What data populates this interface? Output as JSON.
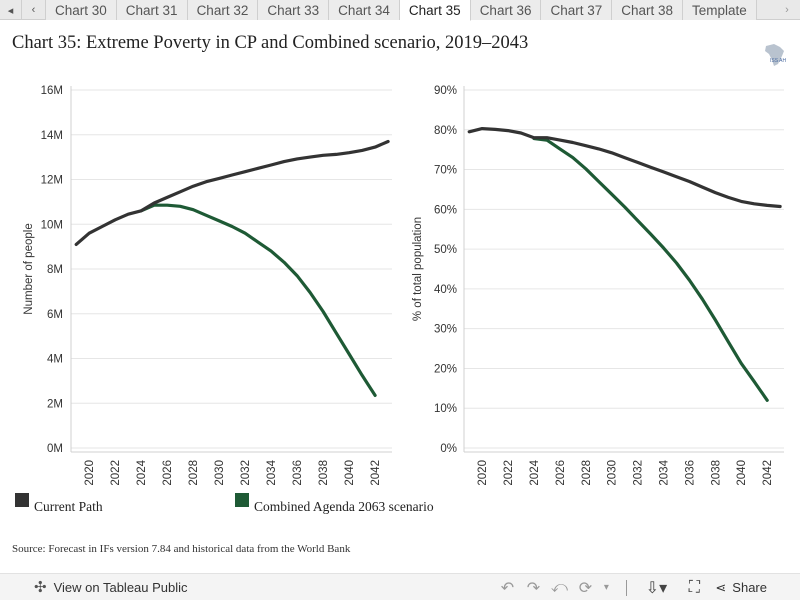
{
  "tabs": {
    "nav_left": "◂",
    "nav_prev": "‹",
    "nav_next": "›",
    "items": [
      {
        "label": "Chart 30"
      },
      {
        "label": "Chart 31"
      },
      {
        "label": "Chart 32"
      },
      {
        "label": "Chart 33"
      },
      {
        "label": "Chart 34"
      },
      {
        "label": "Chart 35"
      },
      {
        "label": "Chart 36"
      },
      {
        "label": "Chart 37"
      },
      {
        "label": "Chart 38"
      },
      {
        "label": "Template"
      }
    ],
    "active_index": 5
  },
  "title": "Chart 35: Extreme Poverty in CP and Combined scenario, 2019–2043",
  "logo_text": "ISS AH",
  "source": "Source: Forecast in IFs version 7.84 and historical data from the World Bank",
  "colors": {
    "current_path": "#333333",
    "combined": "#1e5a35",
    "grid": "#e6e6e6"
  },
  "legend": [
    {
      "name": "Current Path",
      "color": "#333333"
    },
    {
      "name": "Combined Agenda 2063 scenario",
      "color": "#1e5a35"
    }
  ],
  "footer": {
    "tableau_label": "View on Tableau Public",
    "share_label": "Share"
  },
  "chart_data": [
    {
      "type": "line",
      "ylabel": "Number of people",
      "xlabel": "",
      "ylim": [
        0,
        16
      ],
      "yticks": [
        {
          "value": 0,
          "label": "0M"
        },
        {
          "value": 2,
          "label": "2M"
        },
        {
          "value": 4,
          "label": "4M"
        },
        {
          "value": 6,
          "label": "6M"
        },
        {
          "value": 8,
          "label": "8M"
        },
        {
          "value": 10,
          "label": "10M"
        },
        {
          "value": 12,
          "label": "12M"
        },
        {
          "value": 14,
          "label": "14M"
        },
        {
          "value": 16,
          "label": "16M"
        }
      ],
      "xticks": [
        "2020",
        "2022",
        "2024",
        "2026",
        "2028",
        "2030",
        "2032",
        "2034",
        "2036",
        "2038",
        "2040",
        "2042"
      ],
      "x": [
        2019,
        2020,
        2021,
        2022,
        2023,
        2024,
        2025,
        2026,
        2027,
        2028,
        2029,
        2030,
        2031,
        2032,
        2033,
        2034,
        2035,
        2036,
        2037,
        2038,
        2039,
        2040,
        2041,
        2042,
        2043
      ],
      "grid": true,
      "series": [
        {
          "name": "Current Path",
          "color": "#333333",
          "values": [
            9.1,
            9.6,
            9.9,
            10.2,
            10.45,
            10.6,
            10.95,
            11.2,
            11.45,
            11.7,
            11.9,
            12.05,
            12.2,
            12.35,
            12.5,
            12.65,
            12.8,
            12.92,
            13.0,
            13.08,
            13.12,
            13.2,
            13.3,
            13.45,
            13.7
          ]
        },
        {
          "name": "Combined Agenda 2063 scenario",
          "color": "#1e5a35",
          "values": [
            null,
            null,
            null,
            null,
            null,
            10.6,
            10.85,
            10.85,
            10.8,
            10.65,
            10.4,
            10.15,
            9.9,
            9.6,
            9.2,
            8.8,
            8.3,
            7.7,
            6.95,
            6.1,
            5.15,
            4.2,
            3.25,
            2.35,
            null
          ]
        }
      ]
    },
    {
      "type": "line",
      "ylabel": "% of total population",
      "xlabel": "",
      "ylim": [
        0,
        90
      ],
      "yticks": [
        {
          "value": 0,
          "label": "0%"
        },
        {
          "value": 10,
          "label": "10%"
        },
        {
          "value": 20,
          "label": "20%"
        },
        {
          "value": 30,
          "label": "30%"
        },
        {
          "value": 40,
          "label": "40%"
        },
        {
          "value": 50,
          "label": "50%"
        },
        {
          "value": 60,
          "label": "60%"
        },
        {
          "value": 70,
          "label": "70%"
        },
        {
          "value": 80,
          "label": "80%"
        },
        {
          "value": 90,
          "label": "90%"
        }
      ],
      "xticks": [
        "2020",
        "2022",
        "2024",
        "2026",
        "2028",
        "2030",
        "2032",
        "2034",
        "2036",
        "2038",
        "2040",
        "2042"
      ],
      "x": [
        2019,
        2020,
        2021,
        2022,
        2023,
        2024,
        2025,
        2026,
        2027,
        2028,
        2029,
        2030,
        2031,
        2032,
        2033,
        2034,
        2035,
        2036,
        2037,
        2038,
        2039,
        2040,
        2041,
        2042,
        2043
      ],
      "grid": true,
      "series": [
        {
          "name": "Current Path",
          "color": "#333333",
          "values": [
            79.5,
            80.3,
            80.1,
            79.8,
            79.2,
            78.0,
            78.0,
            77.4,
            76.8,
            76.0,
            75.2,
            74.2,
            73.0,
            71.8,
            70.6,
            69.4,
            68.2,
            67.0,
            65.6,
            64.2,
            63.0,
            62.0,
            61.4,
            61.0,
            60.7
          ]
        },
        {
          "name": "Combined Agenda 2063 scenario",
          "color": "#1e5a35",
          "values": [
            null,
            null,
            null,
            null,
            null,
            77.8,
            77.4,
            75.2,
            73.0,
            70.2,
            67.0,
            63.8,
            60.6,
            57.2,
            53.8,
            50.3,
            46.5,
            42.2,
            37.4,
            32.2,
            26.7,
            21.3,
            16.7,
            12.0,
            null
          ]
        }
      ]
    }
  ]
}
